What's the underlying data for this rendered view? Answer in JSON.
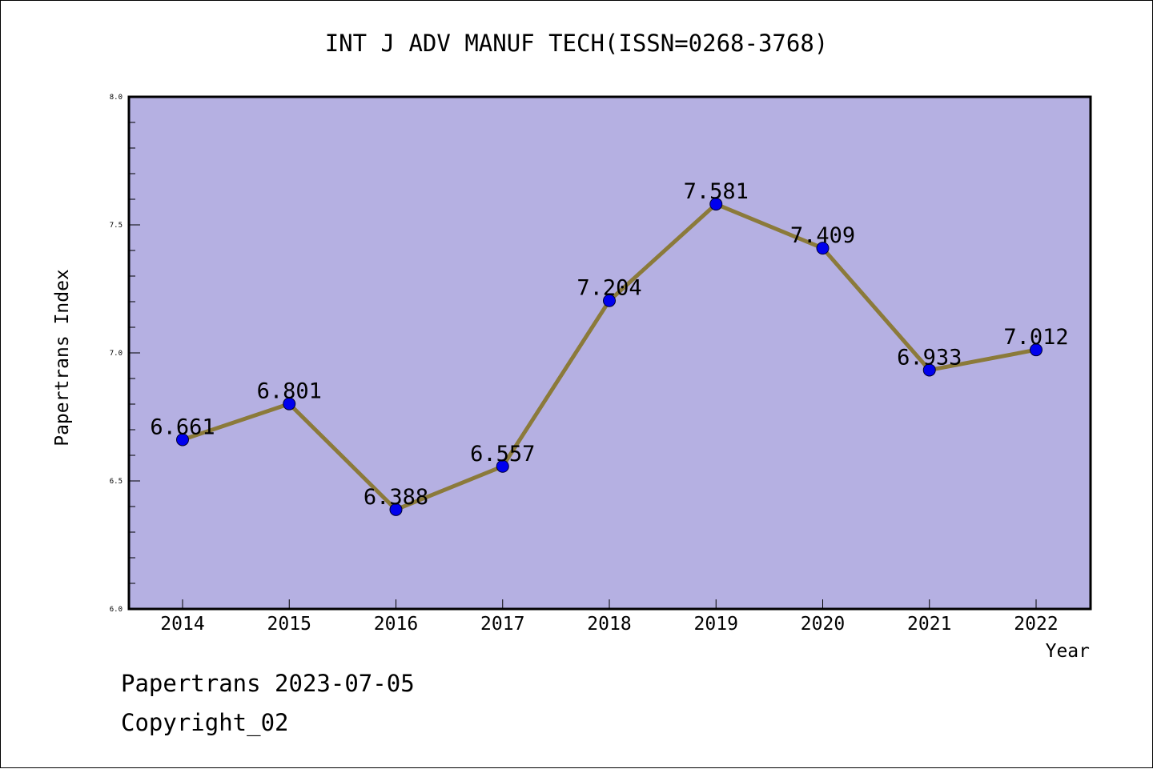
{
  "chart_data": {
    "type": "line",
    "title": "INT J ADV MANUF TECH(ISSN=0268-3768)",
    "xlabel": "Year",
    "ylabel": "Papertrans Index",
    "categories": [
      "2014",
      "2015",
      "2016",
      "2017",
      "2018",
      "2019",
      "2020",
      "2021",
      "2022"
    ],
    "values": [
      6.661,
      6.801,
      6.388,
      6.557,
      7.204,
      7.581,
      7.409,
      6.933,
      7.012
    ],
    "value_labels": [
      "6.661",
      "6.801",
      "6.388",
      "6.557",
      "7.204",
      "7.581",
      "7.409",
      "6.933",
      "7.012"
    ],
    "ylim": [
      6.0,
      8.0
    ],
    "yticks": [
      "6.0",
      "6.5",
      "7.0",
      "7.5",
      "8.0"
    ],
    "grid": false,
    "colors": {
      "plot_background": "#b5b0e2",
      "line": "#8b7a3a",
      "marker": "#0000ee"
    }
  },
  "footer": {
    "line1": "Papertrans 2023-07-05",
    "line2": "Copyright_02"
  }
}
